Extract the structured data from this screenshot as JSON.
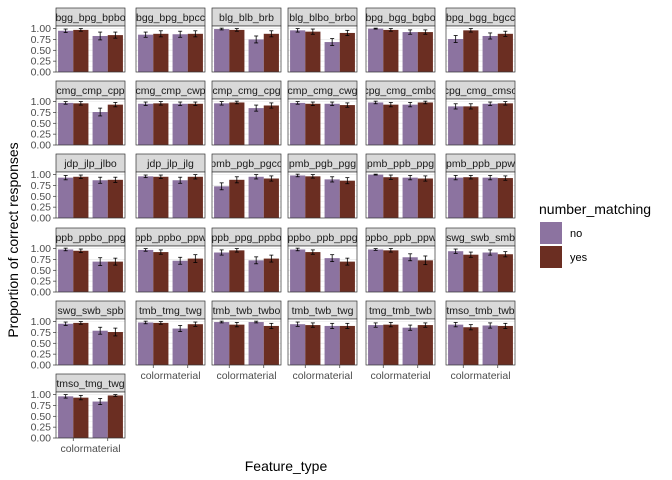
{
  "chart_data": {
    "type": "bar",
    "title": "",
    "xlabel": "Feature_type",
    "ylabel": "Proportion of correct responses",
    "ylim": [
      0,
      1.06
    ],
    "yticks": [
      "0.00",
      "0.25",
      "0.50",
      "0.75",
      "1.00"
    ],
    "ytick_values": [
      0,
      0.25,
      0.5,
      0.75,
      1.0
    ],
    "categories": [
      "color",
      "material"
    ],
    "x_tick_labels_shown": [
      "colormaterial",
      "colormaterial",
      "colormaterial",
      "colormaterial",
      "colormaterial",
      "colormaterial"
    ],
    "legend": {
      "title": "number_matching",
      "placement": "right",
      "entries": [
        {
          "label": "no",
          "color": "#8C73A0"
        },
        {
          "label": "yes",
          "color": "#6B2E22"
        }
      ]
    },
    "colors": {
      "strip_fill": "#d9d9d9",
      "grid": "#ebebeb",
      "no": "#8C73A0",
      "yes": "#6B2E22"
    },
    "panels": [
      {
        "label": "bgg_bpg_bpbo",
        "values": [
          [
            0.95,
            0.97
          ],
          [
            0.83,
            0.85
          ]
        ],
        "errors": [
          [
            0.04,
            0.03
          ],
          [
            0.09,
            0.07
          ]
        ]
      },
      {
        "label": "bgg_bpg_bpcc",
        "values": [
          [
            0.86,
            0.88
          ],
          [
            0.87,
            0.88
          ]
        ],
        "errors": [
          [
            0.06,
            0.07
          ],
          [
            0.07,
            0.07
          ]
        ]
      },
      {
        "label": "blg_blb_brb",
        "values": [
          [
            0.99,
            0.97
          ],
          [
            0.75,
            0.88
          ]
        ],
        "errors": [
          [
            0.02,
            0.03
          ],
          [
            0.08,
            0.07
          ]
        ]
      },
      {
        "label": "blg_blbo_brbo",
        "values": [
          [
            0.96,
            0.93
          ],
          [
            0.69,
            0.9
          ]
        ],
        "errors": [
          [
            0.04,
            0.06
          ],
          [
            0.08,
            0.06
          ]
        ]
      },
      {
        "label": "bpg_bgg_bgbo",
        "values": [
          [
            1.0,
            0.97
          ],
          [
            0.92,
            0.92
          ]
        ],
        "errors": [
          [
            0.01,
            0.03
          ],
          [
            0.05,
            0.05
          ]
        ]
      },
      {
        "label": "bpg_bgg_bgcc",
        "values": [
          [
            0.76,
            0.96
          ],
          [
            0.83,
            0.88
          ]
        ],
        "errors": [
          [
            0.08,
            0.04
          ],
          [
            0.07,
            0.06
          ]
        ]
      },
      {
        "label": "cmg_cmp_cpp",
        "values": [
          [
            0.97,
            0.96
          ],
          [
            0.76,
            0.93
          ]
        ],
        "errors": [
          [
            0.03,
            0.04
          ],
          [
            0.09,
            0.05
          ]
        ]
      },
      {
        "label": "cmg_cmp_cwp",
        "values": [
          [
            0.95,
            0.96
          ],
          [
            0.95,
            0.95
          ]
        ],
        "errors": [
          [
            0.04,
            0.04
          ],
          [
            0.04,
            0.04
          ]
        ]
      },
      {
        "label": "cmp_cmg_cpg",
        "values": [
          [
            0.96,
            0.98
          ],
          [
            0.85,
            0.91
          ]
        ],
        "errors": [
          [
            0.04,
            0.03
          ],
          [
            0.07,
            0.06
          ]
        ]
      },
      {
        "label": "cmp_cmg_cwg",
        "values": [
          [
            0.97,
            0.95
          ],
          [
            0.95,
            0.92
          ]
        ],
        "errors": [
          [
            0.03,
            0.04
          ],
          [
            0.04,
            0.05
          ]
        ]
      },
      {
        "label": "cpg_cmg_cmbo",
        "values": [
          [
            0.98,
            0.93
          ],
          [
            0.93,
            0.98
          ]
        ],
        "errors": [
          [
            0.03,
            0.05
          ],
          [
            0.05,
            0.03
          ]
        ]
      },
      {
        "label": "cpg_cmg_cmso",
        "values": [
          [
            0.89,
            0.89
          ],
          [
            0.95,
            0.96
          ]
        ],
        "errors": [
          [
            0.06,
            0.06
          ],
          [
            0.04,
            0.04
          ]
        ]
      },
      {
        "label": "jdp_jlp_jlbo",
        "values": [
          [
            0.93,
            0.95
          ],
          [
            0.87,
            0.88
          ]
        ],
        "errors": [
          [
            0.05,
            0.04
          ],
          [
            0.07,
            0.06
          ]
        ]
      },
      {
        "label": "jdp_jlp_jlg",
        "values": [
          [
            0.96,
            0.95
          ],
          [
            0.87,
            0.95
          ]
        ],
        "errors": [
          [
            0.03,
            0.04
          ],
          [
            0.07,
            0.05
          ]
        ]
      },
      {
        "label": "pmb_pgb_pgco",
        "values": [
          [
            0.73,
            0.88
          ],
          [
            0.95,
            0.91
          ]
        ],
        "errors": [
          [
            0.08,
            0.07
          ],
          [
            0.05,
            0.06
          ]
        ]
      },
      {
        "label": "pmb_pgb_pgg",
        "values": [
          [
            0.98,
            0.96
          ],
          [
            0.89,
            0.86
          ]
        ],
        "errors": [
          [
            0.03,
            0.04
          ],
          [
            0.06,
            0.07
          ]
        ]
      },
      {
        "label": "pmb_ppb_ppg",
        "values": [
          [
            1.0,
            0.94
          ],
          [
            0.93,
            0.91
          ]
        ],
        "errors": [
          [
            0.01,
            0.05
          ],
          [
            0.05,
            0.06
          ]
        ]
      },
      {
        "label": "pmb_ppb_ppw",
        "values": [
          [
            0.93,
            0.94
          ],
          [
            0.93,
            0.92
          ]
        ],
        "errors": [
          [
            0.05,
            0.04
          ],
          [
            0.05,
            0.05
          ]
        ]
      },
      {
        "label": "ppb_ppbo_ppg",
        "values": [
          [
            0.98,
            0.95
          ],
          [
            0.7,
            0.7
          ]
        ],
        "errors": [
          [
            0.03,
            0.04
          ],
          [
            0.09,
            0.08
          ]
        ]
      },
      {
        "label": "ppb_ppbo_ppw",
        "values": [
          [
            0.97,
            0.92
          ],
          [
            0.72,
            0.77
          ]
        ],
        "errors": [
          [
            0.03,
            0.05
          ],
          [
            0.08,
            0.09
          ]
        ]
      },
      {
        "label": "ppb_ppg_ppbo",
        "values": [
          [
            0.91,
            0.96
          ],
          [
            0.73,
            0.77
          ]
        ],
        "errors": [
          [
            0.06,
            0.04
          ],
          [
            0.08,
            0.08
          ]
        ]
      },
      {
        "label": "ppbo_ppb_ppg",
        "values": [
          [
            0.98,
            0.92
          ],
          [
            0.78,
            0.7
          ]
        ],
        "errors": [
          [
            0.03,
            0.05
          ],
          [
            0.08,
            0.08
          ]
        ]
      },
      {
        "label": "ppbo_ppb_ppw",
        "values": [
          [
            0.98,
            0.96
          ],
          [
            0.8,
            0.73
          ]
        ],
        "errors": [
          [
            0.02,
            0.04
          ],
          [
            0.08,
            0.1
          ]
        ]
      },
      {
        "label": "swg_swb_smb",
        "values": [
          [
            0.94,
            0.86
          ],
          [
            0.91,
            0.87
          ]
        ],
        "errors": [
          [
            0.05,
            0.06
          ],
          [
            0.06,
            0.06
          ]
        ]
      },
      {
        "label": "swg_swb_spb",
        "values": [
          [
            0.95,
            0.97
          ],
          [
            0.79,
            0.76
          ]
        ],
        "errors": [
          [
            0.04,
            0.03
          ],
          [
            0.08,
            0.09
          ]
        ]
      },
      {
        "label": "tmb_tmg_twg",
        "values": [
          [
            0.98,
            0.97
          ],
          [
            0.84,
            0.94
          ]
        ],
        "errors": [
          [
            0.03,
            0.03
          ],
          [
            0.07,
            0.05
          ]
        ]
      },
      {
        "label": "tmb_twb_twbo",
        "values": [
          [
            0.99,
            0.93
          ],
          [
            0.99,
            0.9
          ]
        ],
        "errors": [
          [
            0.02,
            0.05
          ],
          [
            0.02,
            0.06
          ]
        ]
      },
      {
        "label": "tmb_twb_twg",
        "values": [
          [
            0.94,
            0.92
          ],
          [
            0.9,
            0.9
          ]
        ],
        "errors": [
          [
            0.05,
            0.05
          ],
          [
            0.06,
            0.06
          ]
        ]
      },
      {
        "label": "tmg_tmb_twb",
        "values": [
          [
            0.92,
            0.93
          ],
          [
            0.86,
            0.92
          ]
        ],
        "errors": [
          [
            0.05,
            0.05
          ],
          [
            0.06,
            0.05
          ]
        ]
      },
      {
        "label": "tmso_tmb_twb",
        "values": [
          [
            0.93,
            0.87
          ],
          [
            0.91,
            0.9
          ]
        ],
        "errors": [
          [
            0.05,
            0.06
          ],
          [
            0.06,
            0.06
          ]
        ]
      },
      {
        "label": "tmso_tmg_twg",
        "values": [
          [
            0.96,
            0.93
          ],
          [
            0.84,
            0.98
          ]
        ],
        "errors": [
          [
            0.04,
            0.05
          ],
          [
            0.07,
            0.02
          ]
        ]
      }
    ]
  }
}
